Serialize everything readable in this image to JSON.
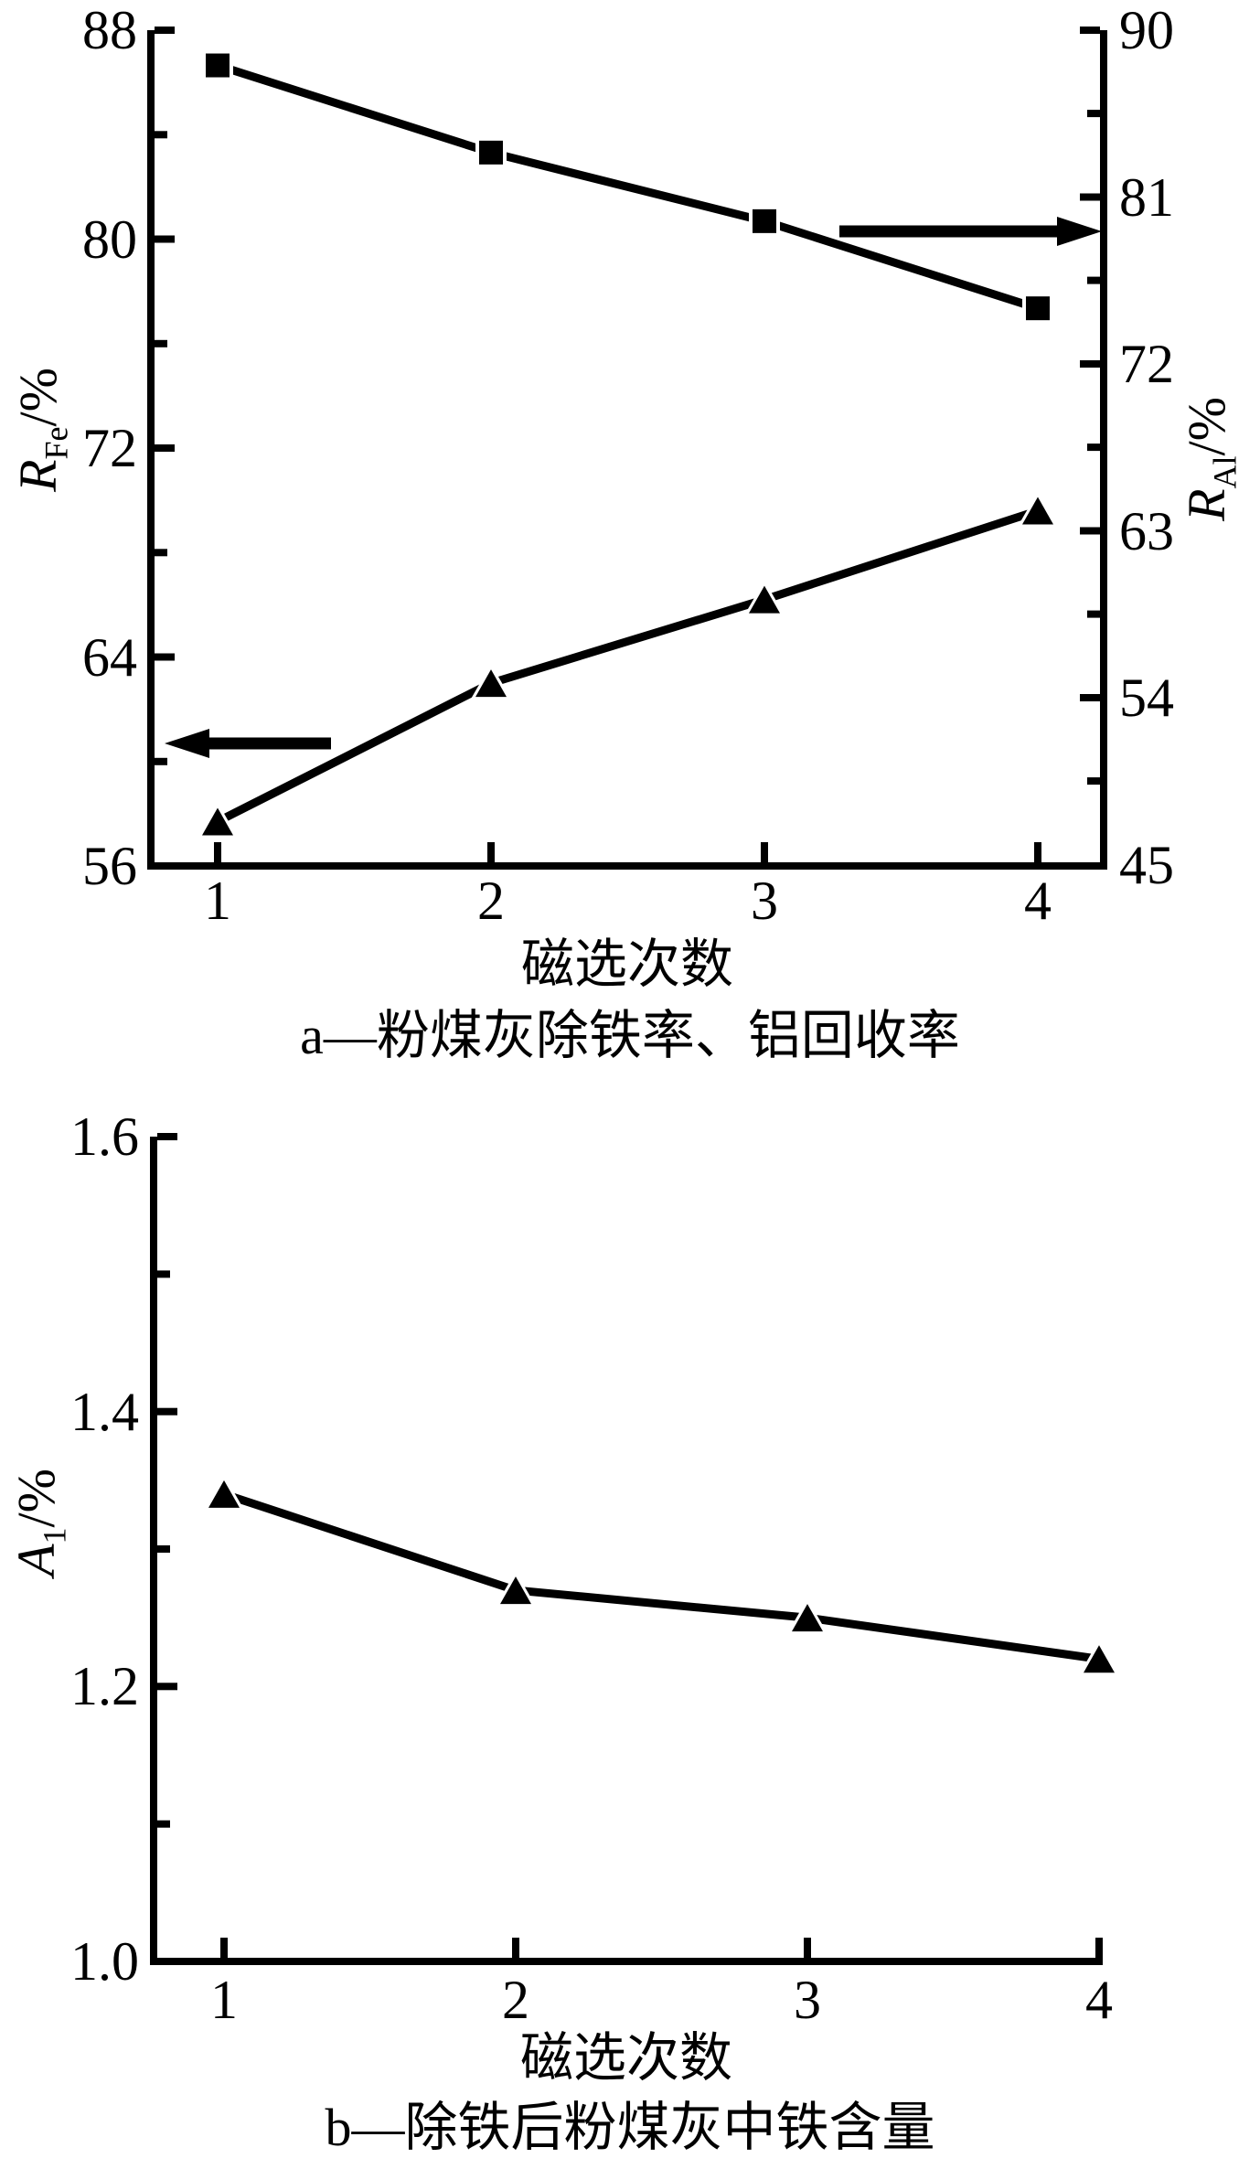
{
  "page": {
    "background": "#ffffff",
    "ink": "#000000"
  },
  "figure": {
    "panel_a": {
      "left_axis_label": {
        "main": "R",
        "sub": "Fe",
        "unit": "/%"
      },
      "right_axis_label": {
        "main": "R",
        "sub": "Al",
        "unit": "/%"
      },
      "left_tick_labels": [
        "88",
        "80",
        "72",
        "64",
        "56"
      ],
      "right_tick_labels": [
        "90",
        "81",
        "72",
        "63",
        "54",
        "45"
      ],
      "x_tick_labels": [
        "1",
        "2",
        "3",
        "4"
      ],
      "xlabel": "磁选次数",
      "caption": "a—粉煤灰除铁率、铝回收率"
    },
    "panel_b": {
      "left_axis_label": {
        "main": "A",
        "sub": "1",
        "unit": "/%"
      },
      "left_tick_labels": [
        "1.6",
        "1.4",
        "1.2",
        "1.0"
      ],
      "x_tick_labels": [
        "1",
        "2",
        "3",
        "4"
      ],
      "xlabel": "磁选次数",
      "caption": "b—除铁后粉煤灰中铁含量"
    }
  },
  "chart_data": [
    {
      "type": "line",
      "panel": "a",
      "title": "a—粉煤灰除铁率、铝回收率",
      "xlabel": "磁选次数",
      "x": [
        1,
        2,
        3,
        4
      ],
      "series": [
        {
          "name": "R_Fe/%",
          "axis": "left",
          "marker": "triangle",
          "values": [
            57.7,
            63.0,
            66.2,
            69.6
          ]
        },
        {
          "name": "R_Al/%",
          "axis": "right",
          "marker": "square",
          "values": [
            88.1,
            83.4,
            79.7,
            75.0
          ]
        }
      ],
      "left_ylim": [
        56,
        88
      ],
      "left_major_step": 8,
      "right_ylim": [
        45,
        90
      ],
      "right_major_step": 9,
      "grid": false,
      "legend": "none",
      "annotations": [
        {
          "shape": "arrow",
          "direction": "left",
          "meaning": "triangle series read on left axis"
        },
        {
          "shape": "arrow",
          "direction": "right",
          "meaning": "square series read on right axis"
        }
      ]
    },
    {
      "type": "line",
      "panel": "b",
      "title": "b—除铁后粉煤灰中铁含量",
      "xlabel": "磁选次数",
      "x": [
        1,
        2,
        3,
        4
      ],
      "series": [
        {
          "name": "A_1/%",
          "axis": "left",
          "marker": "triangle",
          "values": [
            1.34,
            1.27,
            1.25,
            1.22
          ]
        }
      ],
      "ylim": [
        1.0,
        1.6
      ],
      "major_step": 0.2,
      "grid": false,
      "legend": "none"
    }
  ]
}
